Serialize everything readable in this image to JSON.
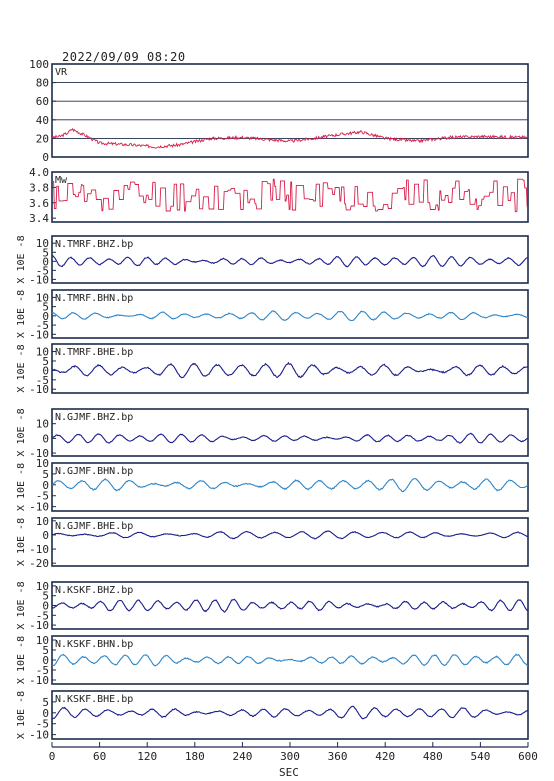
{
  "title": "2022/09/09  08:20",
  "chart_data": {
    "type": "line",
    "xlabel": "SEC",
    "xlim": [
      0,
      600
    ],
    "x_ticks": [
      "0",
      "60",
      "120",
      "180",
      "240",
      "300",
      "360",
      "420",
      "480",
      "540",
      "600"
    ],
    "y_unit_label": "X 10E -8",
    "panels": [
      {
        "label": "VR",
        "kind": "metric",
        "ylim": [
          0,
          100
        ],
        "yticks": [
          "100",
          "80",
          "60",
          "40",
          "20",
          "0"
        ],
        "grid": true,
        "color": "#d6204a",
        "mean": 20,
        "var": 5,
        "seed": 3,
        "anchors": [
          [
            0,
            21
          ],
          [
            10,
            22
          ],
          [
            20,
            26
          ],
          [
            25,
            30
          ],
          [
            40,
            24
          ],
          [
            60,
            15
          ],
          [
            100,
            13
          ],
          [
            130,
            11
          ],
          [
            160,
            13
          ],
          [
            200,
            20
          ],
          [
            240,
            21
          ],
          [
            300,
            17
          ],
          [
            330,
            20
          ],
          [
            360,
            24
          ],
          [
            390,
            27
          ],
          [
            420,
            20
          ],
          [
            460,
            17
          ],
          [
            500,
            21
          ],
          [
            540,
            22
          ],
          [
            600,
            21
          ]
        ]
      },
      {
        "label": "Mw",
        "kind": "metric",
        "ylim": [
          3.35,
          4.0
        ],
        "yticks": [
          "4.0",
          "3.8",
          "3.6",
          "3.4"
        ],
        "grid": false,
        "color": "#d6204a",
        "mean": 3.7,
        "var": 0.22,
        "seed": 11,
        "anchors": [
          [
            0,
            3.7
          ],
          [
            600,
            3.65
          ]
        ]
      },
      {
        "label": "N.TMRF.BHZ.bp",
        "kind": "wave",
        "ylim": [
          -12,
          14
        ],
        "yticks": [
          "10",
          "5",
          "0",
          "-5",
          "-10"
        ],
        "color": "#1a1d8c",
        "amp": 2.0,
        "period": 24,
        "seed": 21
      },
      {
        "label": "N.TMRF.BHN.bp",
        "kind": "wave",
        "ylim": [
          -12,
          14
        ],
        "yticks": [
          "10",
          "5",
          "0",
          "-5",
          "-10"
        ],
        "color": "#2e86c8",
        "amp": 1.8,
        "period": 28,
        "seed": 27
      },
      {
        "label": "N.TMRF.BHE.bp",
        "kind": "wave",
        "ylim": [
          -12,
          14
        ],
        "yticks": [
          "10",
          "5",
          "0",
          "-5",
          "-10"
        ],
        "color": "#1a1d8c",
        "amp": 2.8,
        "period": 30,
        "seed": 33
      },
      {
        "label": "N.GJMF.BHZ.bp",
        "kind": "wave",
        "ylim": [
          -12,
          20
        ],
        "yticks": [
          "10",
          "0",
          "-10"
        ],
        "color": "#1a1d8c",
        "amp": 2.2,
        "period": 26,
        "seed": 41
      },
      {
        "label": "N.GJMF.BHN.bp",
        "kind": "wave",
        "ylim": [
          -12,
          10
        ],
        "yticks": [
          "10",
          "5",
          "0",
          "-5",
          "-10"
        ],
        "color": "#2e86c8",
        "amp": 2.0,
        "period": 30,
        "seed": 47
      },
      {
        "label": "N.GJMF.BHE.bp",
        "kind": "wave",
        "ylim": [
          -22,
          12
        ],
        "yticks": [
          "10",
          "0",
          "-10",
          "-20"
        ],
        "color": "#1a1d8c",
        "amp": 2.0,
        "period": 34,
        "seed": 53
      },
      {
        "label": "N.KSKF.BHZ.bp",
        "kind": "wave",
        "ylim": [
          -12,
          12
        ],
        "yticks": [
          "10",
          "5",
          "0",
          "-5",
          "-10"
        ],
        "color": "#1a1d8c",
        "amp": 2.2,
        "period": 24,
        "seed": 61
      },
      {
        "label": "N.KSKF.BHN.bp",
        "kind": "wave",
        "ylim": [
          -12,
          12
        ],
        "yticks": [
          "10",
          "5",
          "0",
          "-5",
          "-10"
        ],
        "color": "#2e86c8",
        "amp": 2.0,
        "period": 26,
        "seed": 67
      },
      {
        "label": "N.KSKF.BHE.bp",
        "kind": "wave",
        "ylim": [
          -12,
          10
        ],
        "yticks": [
          "5",
          "0",
          "-5",
          "-10"
        ],
        "color": "#1a1d8c",
        "amp": 1.8,
        "period": 28,
        "seed": 73
      }
    ]
  }
}
